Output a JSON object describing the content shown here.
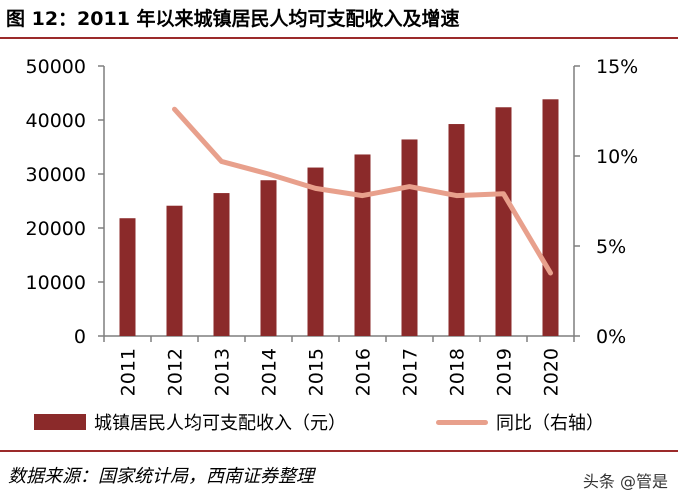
{
  "header": {
    "title": "图 12：2011 年以来城镇居民人均可支配收入及增速"
  },
  "chart_data": {
    "type": "bar",
    "title": "图 12：2011 年以来城镇居民人均可支配收入及增速",
    "categories": [
      "2011",
      "2012",
      "2013",
      "2014",
      "2015",
      "2016",
      "2017",
      "2018",
      "2019",
      "2020"
    ],
    "series": [
      {
        "name": "城镇居民人均可支配收入（元）",
        "type": "bar",
        "axis": "left",
        "values": [
          21810,
          24127,
          26467,
          28844,
          31195,
          33616,
          36396,
          39251,
          42359,
          43834
        ]
      },
      {
        "name": "同比（右轴）",
        "type": "line",
        "axis": "right",
        "unit": "%",
        "values": [
          null,
          12.6,
          9.7,
          9.0,
          8.2,
          7.8,
          8.3,
          7.8,
          7.9,
          3.5
        ]
      }
    ],
    "y_left": {
      "min": 0,
      "max": 50000,
      "ticks": [
        "0",
        "10000",
        "20000",
        "30000",
        "40000",
        "50000"
      ]
    },
    "y_right": {
      "min": 0,
      "max": 15,
      "ticks": [
        "0%",
        "5%",
        "10%",
        "15%"
      ]
    },
    "grid": false,
    "legend_position": "bottom",
    "colors": {
      "bar": "#8b2a2a",
      "line": "#e8a08c",
      "axis": "#7f7f7f"
    }
  },
  "legend": {
    "bar_label": "城镇居民人均可支配收入（元）",
    "line_label": "同比（右轴）"
  },
  "footer": {
    "source": "数据来源：国家统计局，西南证券整理",
    "watermark": "头条 @管是"
  }
}
